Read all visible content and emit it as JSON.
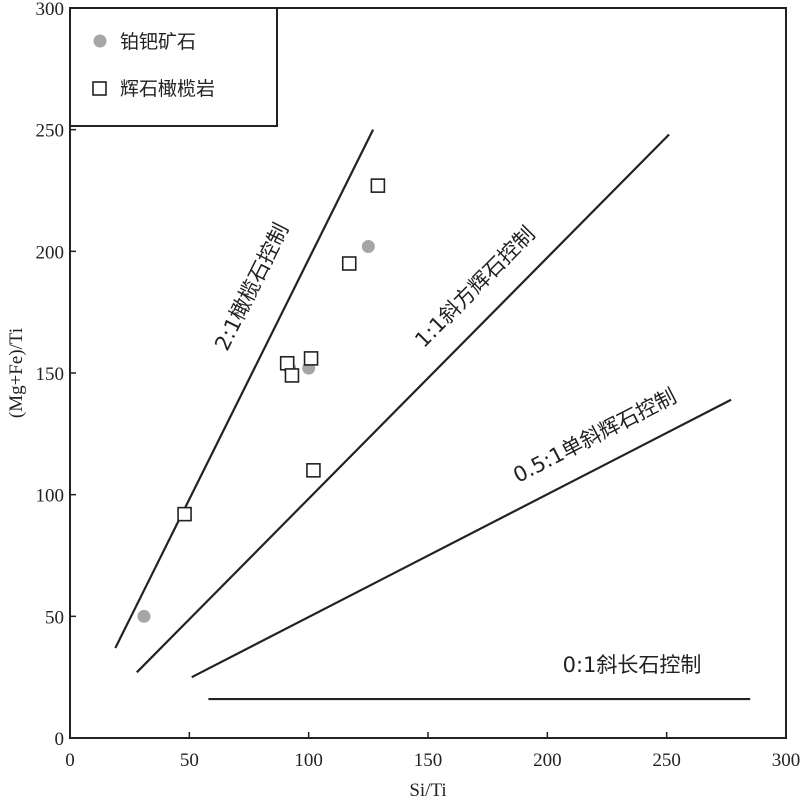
{
  "chart_data": {
    "type": "scatter",
    "xlabel": "Si/Ti",
    "ylabel": "(Mg+Fe)/Ti",
    "xlim": [
      0,
      300
    ],
    "ylim": [
      0,
      300
    ],
    "x_ticks": [
      0,
      50,
      100,
      150,
      200,
      250,
      300
    ],
    "y_ticks": [
      0,
      50,
      100,
      150,
      200,
      250,
      300
    ],
    "grid": false,
    "legend_position": "top-left",
    "series": [
      {
        "name": "铂钯矿石",
        "marker": "filled-circle",
        "color": "#a6a6a6",
        "points": [
          [
            31,
            50
          ],
          [
            92,
            152
          ],
          [
            100,
            152
          ],
          [
            125,
            202
          ]
        ]
      },
      {
        "name": "辉石橄榄岩",
        "marker": "open-square",
        "color": "#222222",
        "points": [
          [
            48,
            92
          ],
          [
            91,
            154
          ],
          [
            93,
            149
          ],
          [
            101,
            156
          ],
          [
            102,
            110
          ],
          [
            117,
            195
          ],
          [
            129,
            227
          ]
        ]
      }
    ],
    "reference_lines": [
      {
        "label": "2:1橄榄石控制",
        "from": [
          19,
          37
        ],
        "to": [
          127,
          250
        ]
      },
      {
        "label": "1:1斜方辉石控制",
        "from": [
          28,
          27
        ],
        "to": [
          251,
          248
        ]
      },
      {
        "label": "0.5:1单斜辉石控制",
        "from": [
          51,
          25
        ],
        "to": [
          277,
          139
        ]
      },
      {
        "label": "0:1斜长石控制",
        "from": [
          58,
          16
        ],
        "to": [
          285,
          16
        ]
      }
    ]
  }
}
